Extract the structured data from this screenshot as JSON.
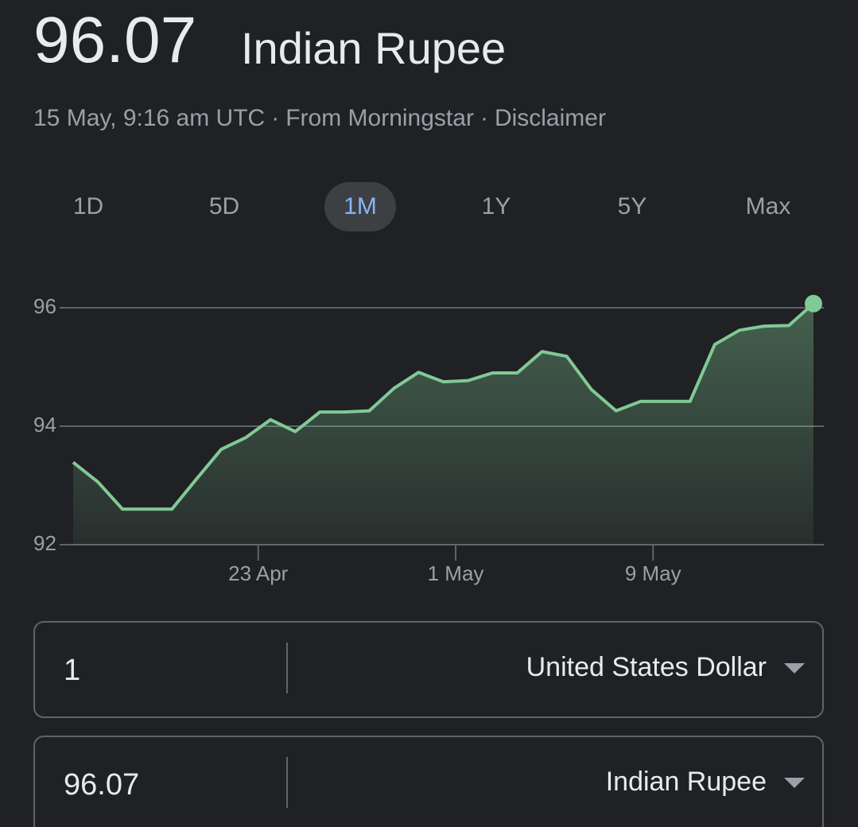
{
  "header": {
    "value": "96.07",
    "currency": "Indian Rupee"
  },
  "subtitle": {
    "timestamp": "15 May, 9:16 am UTC",
    "separator": "·",
    "source": "From Morningstar",
    "disclaimer": "Disclaimer"
  },
  "tabs": [
    {
      "label": "1D"
    },
    {
      "label": "5D"
    },
    {
      "label": "1M",
      "selected": true
    },
    {
      "label": "1Y"
    },
    {
      "label": "5Y"
    },
    {
      "label": "Max"
    }
  ],
  "chart_data": {
    "type": "area",
    "color": "#81c995",
    "x": [
      0,
      1,
      2,
      3,
      4,
      5,
      6,
      7,
      8,
      9,
      10,
      11,
      12,
      13,
      14,
      15,
      16,
      17,
      18,
      19,
      20,
      21,
      22,
      23,
      24,
      25,
      26,
      27,
      28,
      29,
      30
    ],
    "values": [
      93.39,
      93.06,
      92.6,
      92.6,
      92.6,
      93.11,
      93.61,
      93.81,
      94.11,
      93.91,
      94.24,
      94.24,
      94.26,
      94.64,
      94.91,
      94.75,
      94.77,
      94.9,
      94.9,
      95.26,
      95.18,
      94.62,
      94.26,
      94.42,
      94.42,
      94.42,
      95.38,
      95.62,
      95.69,
      95.7,
      96.07
    ],
    "xlim": [
      0,
      30
    ],
    "xticks": [
      {
        "value": 7.5,
        "label": "23 Apr"
      },
      {
        "value": 15.5,
        "label": "1 May"
      },
      {
        "value": 23.5,
        "label": "9 May"
      }
    ],
    "ylim": [
      92,
      96
    ],
    "yticks": [
      92,
      94,
      96
    ],
    "grid": true
  },
  "converter": {
    "from": {
      "amount": "1",
      "currency": "United States Dollar"
    },
    "to": {
      "amount": "96.07",
      "currency": "Indian Rupee"
    }
  }
}
